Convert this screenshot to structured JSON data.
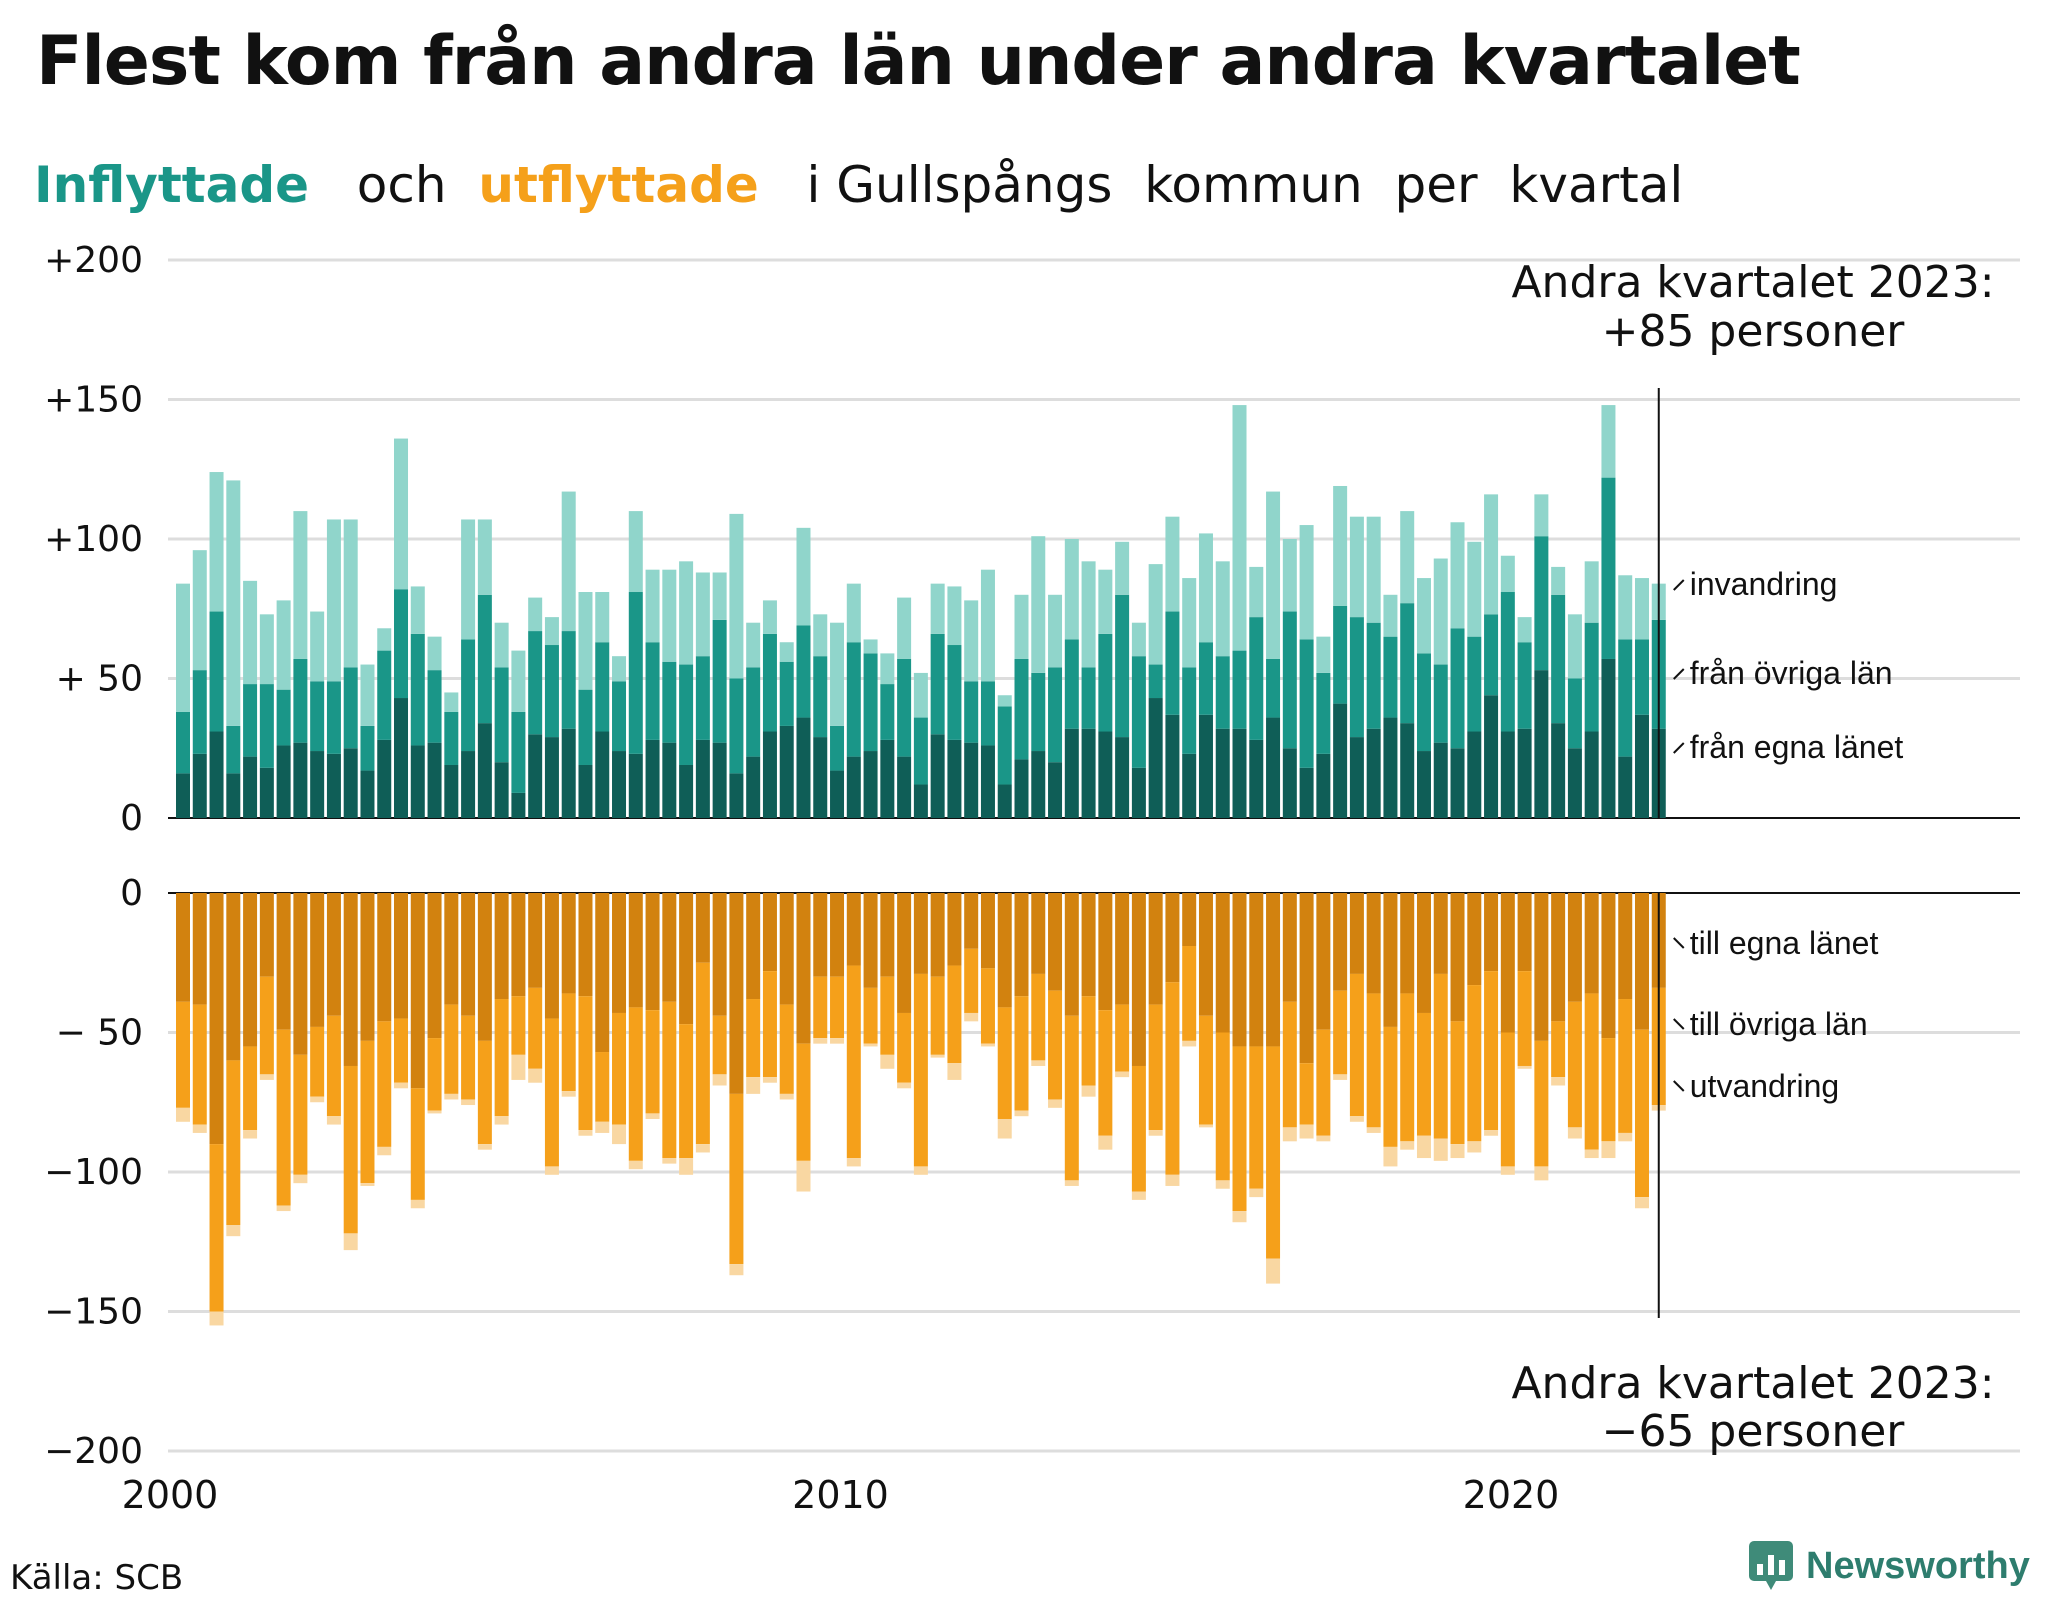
{
  "chart_data": {
    "type": "bar",
    "title": "Flest kom från andra län under andra kvartalet",
    "subtitle": {
      "parts": [
        "Inflyttade",
        "och",
        "utflyttade",
        "i Gullspångs",
        "kommun",
        "per",
        "kvartal"
      ]
    },
    "x_start": "2000 Q1",
    "x_ticks": [
      "2000",
      "2010",
      "2020"
    ],
    "top_panel": {
      "y_ticks": [
        "+200",
        "+150",
        "+100",
        "+ 50",
        "0"
      ],
      "ylim": [
        0,
        200
      ],
      "series": [
        {
          "name": "från egna länet",
          "color": "#0f5e57",
          "values": [
            16,
            23,
            31,
            16,
            22,
            18,
            26,
            27,
            24,
            23,
            25,
            17,
            28,
            43,
            26,
            27,
            19,
            24,
            34,
            20,
            9,
            30,
            29,
            32,
            19,
            31,
            24,
            23,
            28,
            27,
            19,
            28,
            27,
            16,
            22,
            31,
            33,
            36,
            29,
            17,
            22,
            24,
            28,
            22,
            12,
            30,
            28,
            27,
            26,
            12,
            21,
            24,
            20,
            32,
            32,
            31,
            29,
            18,
            43,
            37,
            23,
            37,
            32,
            32,
            28,
            36,
            25,
            18,
            23,
            41,
            29,
            32,
            36,
            34,
            24,
            27,
            25,
            31,
            44,
            31,
            32,
            53,
            34,
            25,
            31,
            57,
            22,
            37,
            32
          ]
        },
        {
          "name": "från övriga län",
          "color": "#1a9688",
          "values": [
            22,
            30,
            43,
            17,
            26,
            30,
            20,
            30,
            25,
            26,
            29,
            16,
            32,
            39,
            40,
            26,
            19,
            40,
            46,
            34,
            29,
            37,
            33,
            35,
            27,
            32,
            25,
            58,
            35,
            29,
            36,
            30,
            44,
            34,
            32,
            35,
            23,
            33,
            29,
            16,
            41,
            35,
            20,
            35,
            24,
            36,
            34,
            22,
            23,
            28,
            36,
            28,
            34,
            32,
            22,
            35,
            51,
            40,
            12,
            37,
            31,
            26,
            26,
            28,
            44,
            21,
            49,
            46,
            29,
            35,
            43,
            38,
            29,
            43,
            35,
            28,
            43,
            34,
            29,
            50,
            31,
            48,
            46,
            25,
            39,
            65,
            42,
            27,
            39
          ]
        },
        {
          "name": "invandring",
          "color": "#90d5cb",
          "values": [
            46,
            43,
            50,
            88,
            37,
            25,
            32,
            53,
            25,
            58,
            53,
            22,
            8,
            54,
            17,
            12,
            7,
            43,
            27,
            16,
            22,
            12,
            10,
            50,
            35,
            18,
            9,
            29,
            26,
            33,
            37,
            30,
            17,
            59,
            16,
            12,
            7,
            35,
            15,
            37,
            21,
            5,
            11,
            22,
            16,
            18,
            21,
            29,
            40,
            4,
            23,
            49,
            26,
            36,
            38,
            23,
            19,
            12,
            36,
            34,
            32,
            39,
            34,
            88,
            18,
            60,
            26,
            41,
            13,
            43,
            36,
            38,
            15,
            33,
            27,
            38,
            38,
            34,
            43,
            13,
            9,
            15,
            10,
            23,
            22,
            26,
            23,
            22,
            13
          ]
        }
      ]
    },
    "bottom_panel": {
      "y_ticks": [
        "0",
        "− 50",
        "−100",
        "−150",
        "−200"
      ],
      "ylim": [
        -200,
        0
      ],
      "series": [
        {
          "name": "till egna länet",
          "color": "#d2820f",
          "values": [
            -39,
            -40,
            -90,
            -60,
            -55,
            -30,
            -49,
            -58,
            -48,
            -44,
            -62,
            -53,
            -46,
            -45,
            -70,
            -52,
            -40,
            -44,
            -53,
            -38,
            -37,
            -34,
            -45,
            -36,
            -37,
            -57,
            -43,
            -41,
            -42,
            -39,
            -47,
            -25,
            -44,
            -72,
            -38,
            -28,
            -40,
            -54,
            -30,
            -30,
            -26,
            -34,
            -30,
            -43,
            -29,
            -30,
            -26,
            -20,
            -27,
            -41,
            -37,
            -29,
            -35,
            -44,
            -37,
            -42,
            -40,
            -62,
            -40,
            -32,
            -19,
            -44,
            -50,
            -55,
            -55,
            -55,
            -39,
            -61,
            -49,
            -35,
            -29,
            -36,
            -48,
            -36,
            -43,
            -29,
            -46,
            -33,
            -28,
            -50,
            -28,
            -53,
            -46,
            -39,
            -36,
            -52,
            -38,
            -49,
            -34
          ]
        },
        {
          "name": "till övriga län",
          "color": "#f5a01a",
          "values": [
            -38,
            -43,
            -60,
            -59,
            -30,
            -35,
            -63,
            -43,
            -25,
            -36,
            -60,
            -51,
            -45,
            -23,
            -40,
            -26,
            -32,
            -30,
            -37,
            -42,
            -21,
            -29,
            -53,
            -35,
            -48,
            -25,
            -40,
            -55,
            -37,
            -56,
            -48,
            -65,
            -21,
            -61,
            -28,
            -38,
            -32,
            -42,
            -22,
            -22,
            -69,
            -20,
            -28,
            -25,
            -69,
            -28,
            -35,
            -23,
            -27,
            -40,
            -41,
            -31,
            -39,
            -59,
            -32,
            -45,
            -24,
            -45,
            -45,
            -69,
            -34,
            -39,
            -53,
            -59,
            -51,
            -76,
            -45,
            -22,
            -38,
            -30,
            -51,
            -48,
            -43,
            -53,
            -44,
            -59,
            -44,
            -56,
            -57,
            -48,
            -34,
            -45,
            -20,
            -45,
            -56,
            -37,
            -48,
            -60,
            -42
          ]
        },
        {
          "name": "utvandring",
          "color": "#f9d7a2",
          "values": [
            -5,
            -3,
            -5,
            -4,
            -3,
            -2,
            -2,
            -3,
            -2,
            -3,
            -6,
            -1,
            -3,
            -2,
            -3,
            -1,
            -2,
            -2,
            -2,
            -3,
            -9,
            -5,
            -3,
            -2,
            -2,
            -4,
            -7,
            -3,
            -2,
            -2,
            -6,
            -3,
            -4,
            -4,
            -6,
            -2,
            -2,
            -11,
            -2,
            -2,
            -3,
            -1,
            -5,
            -2,
            -3,
            -1,
            -6,
            -3,
            -1,
            -7,
            -2,
            -2,
            -3,
            -2,
            -4,
            -5,
            -2,
            -3,
            -2,
            -4,
            -2,
            -1,
            -3,
            -4,
            -3,
            -9,
            -5,
            -5,
            -2,
            -2,
            -2,
            -2,
            -7,
            -3,
            -8,
            -8,
            -5,
            -4,
            -2,
            -3,
            -1,
            -5,
            -3,
            -4,
            -3,
            -6,
            -3,
            -4,
            -2
          ]
        }
      ]
    },
    "annotation_top": {
      "line1": "Andra kvartalet 2023:",
      "line2": "+85 personer"
    },
    "annotation_bottom": {
      "line1": "Andra kvartalet 2023:",
      "line2": "−65 personer"
    }
  },
  "source": "Källa: SCB",
  "brand": "Newsworthy",
  "colors": {
    "accent_in": "#1a9688",
    "accent_out": "#f5a01a",
    "grid": "#dddddd"
  }
}
